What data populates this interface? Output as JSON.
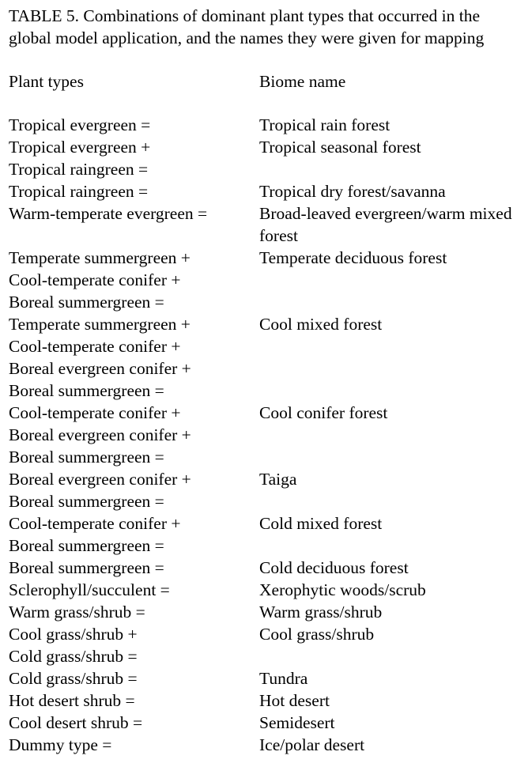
{
  "caption": "TABLE 5. Combinations of dominant plant types that occurred in the global model application, and the names they were given for mapping",
  "headers": {
    "plant_types": "Plant types",
    "biome_name": "Biome name"
  },
  "rows": [
    {
      "types": [
        "Tropical evergreen ="
      ],
      "biome": "Tropical rain forest"
    },
    {
      "types": [
        "Tropical evergreen +",
        "Tropical raingreen ="
      ],
      "biome": "Tropical seasonal forest"
    },
    {
      "types": [
        "Tropical raingreen ="
      ],
      "biome": "Tropical dry forest/savanna"
    },
    {
      "types": [
        "Warm-temperate evergreen =",
        ""
      ],
      "biome": "Broad-leaved evergreen/warm mixed forest"
    },
    {
      "types": [
        "Temperate summergreen +",
        "Cool-temperate conifer +",
        "Boreal summergreen ="
      ],
      "biome": "Temperate deciduous forest"
    },
    {
      "types": [
        "Temperate summergreen +",
        "Cool-temperate conifer +",
        "Boreal evergreen conifer +",
        "Boreal summergreen ="
      ],
      "biome": "Cool mixed forest"
    },
    {
      "types": [
        "Cool-temperate conifer +",
        "Boreal evergreen conifer +",
        "Boreal summergreen ="
      ],
      "biome": "Cool conifer forest"
    },
    {
      "types": [
        "Boreal evergreen conifer +",
        "Boreal summergreen ="
      ],
      "biome": "Taiga"
    },
    {
      "types": [
        "Cool-temperate conifer +",
        "Boreal summergreen ="
      ],
      "biome": "Cold mixed forest"
    },
    {
      "types": [
        "Boreal summergreen ="
      ],
      "biome": "Cold deciduous forest"
    },
    {
      "types": [
        "Sclerophyll/succulent ="
      ],
      "biome": "Xerophytic woods/scrub"
    },
    {
      "types": [
        "Warm grass/shrub ="
      ],
      "biome": "Warm grass/shrub"
    },
    {
      "types": [
        "Cool grass/shrub +",
        "Cold grass/shrub ="
      ],
      "biome": "Cool grass/shrub"
    },
    {
      "types": [
        "Cold grass/shrub ="
      ],
      "biome": "Tundra"
    },
    {
      "types": [
        "Hot desert shrub ="
      ],
      "biome": "Hot desert"
    },
    {
      "types": [
        "Cool desert shrub ="
      ],
      "biome": "Semidesert"
    },
    {
      "types": [
        "Dummy type ="
      ],
      "biome": "Ice/polar desert"
    }
  ]
}
